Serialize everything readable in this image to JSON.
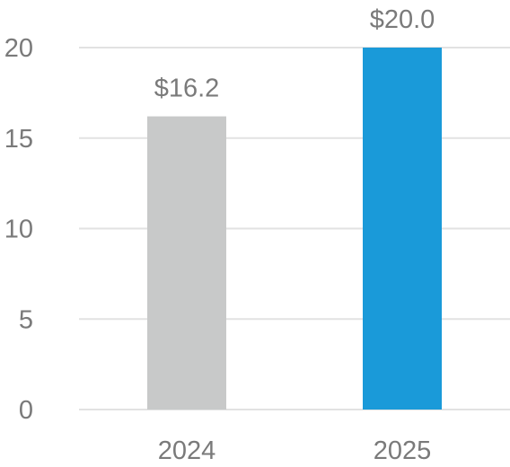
{
  "chart_data": {
    "type": "bar",
    "categories": [
      "2024",
      "2025"
    ],
    "values": [
      16.2,
      20.0
    ],
    "data_labels": [
      "$16.2",
      "$20.0"
    ],
    "bar_colors": [
      "#c8c9c9",
      "#1a9ad9"
    ],
    "yticks": [
      0,
      5,
      10,
      15,
      20
    ],
    "ylim": [
      0,
      20
    ],
    "grid": true,
    "legend": "none",
    "title": "",
    "xlabel": "",
    "ylabel": ""
  },
  "colors": {
    "grid": "#e2e2e2",
    "text": "#7a7a7a"
  }
}
